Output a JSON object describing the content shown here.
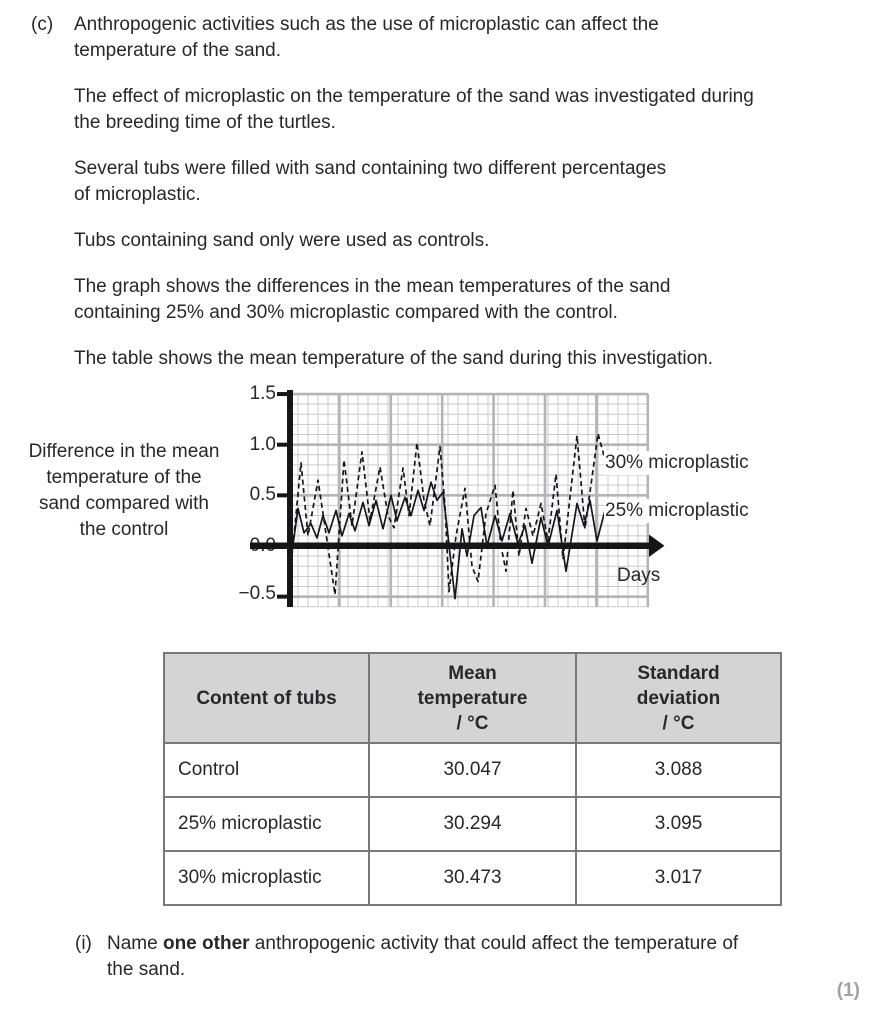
{
  "question": {
    "part_label": "(c)",
    "paragraphs": [
      "Anthropogenic activities such as the use of microplastic can affect the\ntemperature of the sand.",
      "The effect of microplastic on the temperature of the sand was investigated during\nthe breeding time of the turtles.",
      "Several tubs were filled with sand containing two different percentages\nof microplastic.",
      "Tubs containing sand only were used as controls.",
      "The graph shows the differences in the mean temperatures of the sand\ncontaining 25% and 30% microplastic compared with the control.",
      "The table shows the mean temperature of the sand during this investigation."
    ]
  },
  "chart_data": {
    "type": "line",
    "y_axis_label": "Difference in the mean\ntemperature of the\nsand compared with\nthe control",
    "x_axis_label": "Days",
    "y_ticks": [
      "1.5",
      "1.0",
      "0.5",
      "0.0",
      "−0.5"
    ],
    "ylim": [
      -0.5,
      1.5
    ],
    "x_numeric_ticks_shown": false,
    "grid": true,
    "legend_position": "right-inline",
    "series": [
      {
        "name": "30% microplastic",
        "line_style": "dashed",
        "points": [
          [
            0,
            0.15
          ],
          [
            0.4,
            -0.1
          ],
          [
            1.3,
            0.82
          ],
          [
            2.0,
            0.1
          ],
          [
            3.0,
            0.65
          ],
          [
            3.8,
            0.12
          ],
          [
            4.7,
            -0.48
          ],
          [
            5.6,
            0.85
          ],
          [
            6.4,
            0.2
          ],
          [
            7.4,
            0.93
          ],
          [
            8.2,
            0.25
          ],
          [
            9.2,
            0.78
          ],
          [
            10.0,
            0.3
          ],
          [
            10.6,
            0.18
          ],
          [
            11.5,
            0.77
          ],
          [
            12.1,
            0.3
          ],
          [
            12.9,
            1.02
          ],
          [
            13.6,
            0.45
          ],
          [
            14.2,
            0.2
          ],
          [
            15.2,
            0.98
          ],
          [
            15.7,
            0.4
          ],
          [
            16.1,
            -0.45
          ],
          [
            16.8,
            0.1
          ],
          [
            17.7,
            0.57
          ],
          [
            18.4,
            -0.2
          ],
          [
            19.0,
            -0.35
          ],
          [
            19.8,
            0.32
          ],
          [
            20.7,
            0.6
          ],
          [
            21.3,
            0.0
          ],
          [
            21.8,
            -0.25
          ],
          [
            22.5,
            0.55
          ],
          [
            23.1,
            -0.1
          ],
          [
            23.8,
            0.37
          ],
          [
            24.5,
            0.1
          ],
          [
            25.3,
            0.42
          ],
          [
            26.0,
            0.05
          ],
          [
            26.8,
            0.71
          ],
          [
            27.5,
            -0.13
          ],
          [
            28.9,
            1.09
          ],
          [
            29.7,
            0.17
          ],
          [
            31.0,
            1.11
          ],
          [
            31.9,
            0.78
          ]
        ]
      },
      {
        "name": "25% microplastic",
        "line_style": "solid",
        "points": [
          [
            0,
            0.2
          ],
          [
            0.3,
            -0.13
          ],
          [
            1.0,
            0.37
          ],
          [
            1.6,
            0.13
          ],
          [
            2.3,
            0.22
          ],
          [
            2.9,
            0.08
          ],
          [
            3.5,
            0.3
          ],
          [
            4.1,
            0.13
          ],
          [
            4.8,
            0.35
          ],
          [
            5.4,
            0.1
          ],
          [
            6.1,
            0.32
          ],
          [
            6.7,
            0.15
          ],
          [
            7.5,
            0.43
          ],
          [
            8.1,
            0.2
          ],
          [
            8.8,
            0.45
          ],
          [
            9.5,
            0.17
          ],
          [
            10.3,
            0.5
          ],
          [
            10.9,
            0.25
          ],
          [
            11.7,
            0.48
          ],
          [
            12.3,
            0.3
          ],
          [
            13.0,
            0.55
          ],
          [
            13.6,
            0.35
          ],
          [
            14.3,
            0.63
          ],
          [
            14.9,
            0.45
          ],
          [
            15.5,
            0.53
          ],
          [
            16.0,
            0.1
          ],
          [
            16.7,
            -0.52
          ],
          [
            17.4,
            0.17
          ],
          [
            17.9,
            -0.1
          ],
          [
            18.6,
            0.3
          ],
          [
            19.3,
            0.38
          ],
          [
            19.9,
            0.0
          ],
          [
            20.7,
            0.3
          ],
          [
            21.4,
            0.05
          ],
          [
            22.2,
            0.32
          ],
          [
            23.0,
            0.02
          ],
          [
            23.7,
            0.2
          ],
          [
            24.4,
            -0.17
          ],
          [
            25.3,
            0.28
          ],
          [
            26.0,
            0.0
          ],
          [
            26.9,
            0.35
          ],
          [
            27.8,
            -0.25
          ],
          [
            28.9,
            0.42
          ],
          [
            29.6,
            0.2
          ],
          [
            30.2,
            0.45
          ],
          [
            30.9,
            0.05
          ],
          [
            31.7,
            0.35
          ],
          [
            32.3,
            0.4
          ]
        ]
      }
    ]
  },
  "table": {
    "headers": [
      "Content of tubs",
      "Mean\ntemperature\n/ °C",
      "Standard\ndeviation\n/ °C"
    ],
    "rows": [
      [
        "Control",
        "30.047",
        "3.088"
      ],
      [
        "25% microplastic",
        "30.294",
        "3.095"
      ],
      [
        "30% microplastic",
        "30.473",
        "3.017"
      ]
    ]
  },
  "subquestion": {
    "label": "(i)",
    "pre": "Name ",
    "bold": "one other",
    "post": " anthropogenic activity that could affect the temperature of\nthe sand.",
    "marks": "(1)"
  },
  "colors": {
    "text": "#29272a",
    "axis_black": "#161518",
    "grid_fine": "#c9cacc",
    "grid_major": "#b3b4b6",
    "table_border": "#77787a",
    "table_header_bg": "#d4d4d5",
    "marks_gray": "#9fa1a4"
  }
}
